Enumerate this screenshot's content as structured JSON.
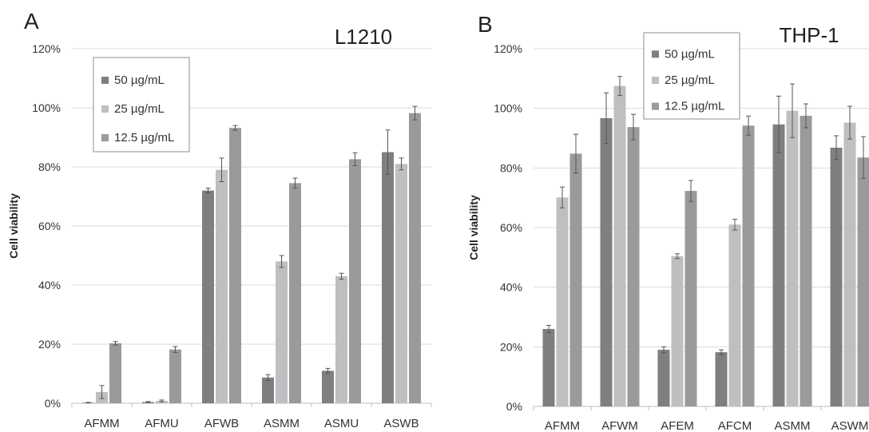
{
  "chart_data": [
    {
      "type": "bar",
      "panel": "A",
      "title": "L1210",
      "ylabel": "Cell viability",
      "xlabel": "",
      "ylim": [
        0,
        120
      ],
      "yticks": [
        "0%",
        "20%",
        "40%",
        "60%",
        "80%",
        "100%",
        "120%"
      ],
      "grid": true,
      "legend_position": "top-left",
      "categories": [
        "AFMM",
        "AFMU",
        "AFWB",
        "ASMM",
        "ASMU",
        "ASWB"
      ],
      "series": [
        {
          "name": "50 µg/mL",
          "color": "#7f7f82",
          "values": [
            0.2,
            0.4,
            72,
            8.7,
            11,
            85
          ],
          "errors": [
            0.1,
            0.2,
            0.8,
            1.0,
            0.8,
            7.5
          ]
        },
        {
          "name": "25 µg/mL",
          "color": "#bfbfc2",
          "values": [
            3.8,
            0.8,
            79,
            48,
            43,
            81
          ],
          "errors": [
            2.2,
            0.3,
            4.0,
            2.0,
            1.0,
            2.0
          ]
        },
        {
          "name": "12.5 µg/mL",
          "color": "#9a9a9d",
          "values": [
            20.3,
            18.2,
            93.2,
            74.5,
            82.6,
            98.2
          ],
          "errors": [
            0.6,
            1.0,
            0.8,
            1.7,
            2.2,
            2.3
          ]
        }
      ]
    },
    {
      "type": "bar",
      "panel": "B",
      "title": "THP-1",
      "ylabel": "Cell viability",
      "xlabel": "",
      "ylim": [
        0,
        120
      ],
      "yticks": [
        "0%",
        "20%",
        "40%",
        "60%",
        "80%",
        "100%",
        "120%"
      ],
      "grid": true,
      "legend_position": "top-left",
      "categories": [
        "AFMM",
        "AFWM",
        "AFEM",
        "AFCM",
        "ASMM",
        "ASWM"
      ],
      "series": [
        {
          "name": "50 µg/mL",
          "color": "#7f7f82",
          "values": [
            26,
            96.7,
            19,
            18.2,
            94.6,
            86.8
          ],
          "errors": [
            1.2,
            8.5,
            1.0,
            0.8,
            9.5,
            4.0
          ]
        },
        {
          "name": "25 µg/mL",
          "color": "#bfbfc2",
          "values": [
            70.1,
            107.5,
            50.4,
            61,
            99.2,
            95.2
          ],
          "errors": [
            3.5,
            3.2,
            0.8,
            1.8,
            9.0,
            5.5
          ]
        },
        {
          "name": "12.5 µg/mL",
          "color": "#9a9a9d",
          "values": [
            84.8,
            93.7,
            72.3,
            94.2,
            97.5,
            83.5
          ],
          "errors": [
            6.5,
            4.3,
            3.5,
            3.2,
            4.0,
            7.0
          ]
        }
      ]
    }
  ]
}
